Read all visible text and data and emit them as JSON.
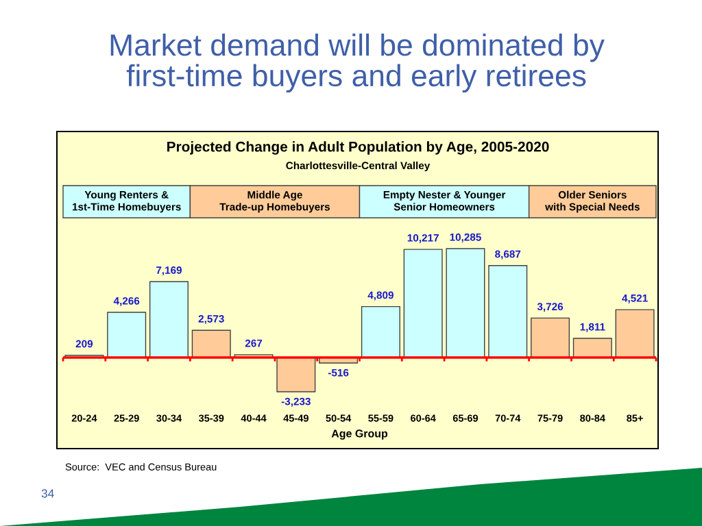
{
  "chart_data": {
    "type": "bar",
    "title": "Market demand will be dominated by\nfirst-time buyers and early retirees",
    "subtitle": "Projected Change in Adult Population by Age, 2005-2020",
    "xlabel": "Age Group",
    "categories": [
      "20-24",
      "25-29",
      "30-34",
      "35-39",
      "40-44",
      "45-49",
      "50-54",
      "55-59",
      "60-64",
      "65-69",
      "70-74",
      "75-79",
      "80-84",
      "85+"
    ],
    "values": [
      209,
      4266,
      7169,
      2573,
      267,
      -3233,
      -516,
      4809,
      10217,
      10285,
      8687,
      3726,
      1811,
      4521
    ],
    "value_labels": [
      "209",
      "4,266",
      "7,169",
      "2,573",
      "267",
      "-3,233",
      "-516",
      "4,809",
      "10,217",
      "10,285",
      "8,687",
      "3,726",
      "1,811",
      "4,521"
    ],
    "colors": [
      "#ccffff",
      "#ccffff",
      "#ccffff",
      "#ffcc99",
      "#ffcc99",
      "#ffcc99",
      "#ffcc99",
      "#ccffff",
      "#ccffff",
      "#ccffff",
      "#ccffff",
      "#ffcc99",
      "#ffcc99",
      "#ffcc99"
    ],
    "ref_lines": [
      {
        "axis": "y",
        "value": 0,
        "color": "#ff0000"
      }
    ],
    "annotations": [
      "Charlottesville-Central Valley",
      "Young Renters &\n1st-Time Homebuyers",
      "Middle Age\nTrade-up Homebuyers",
      "Empty Nester & Younger\nSenior Homeowners",
      "Older Seniors\nwith Special Needs",
      "Source:  VEC and Census Bureau",
      "34"
    ]
  }
}
